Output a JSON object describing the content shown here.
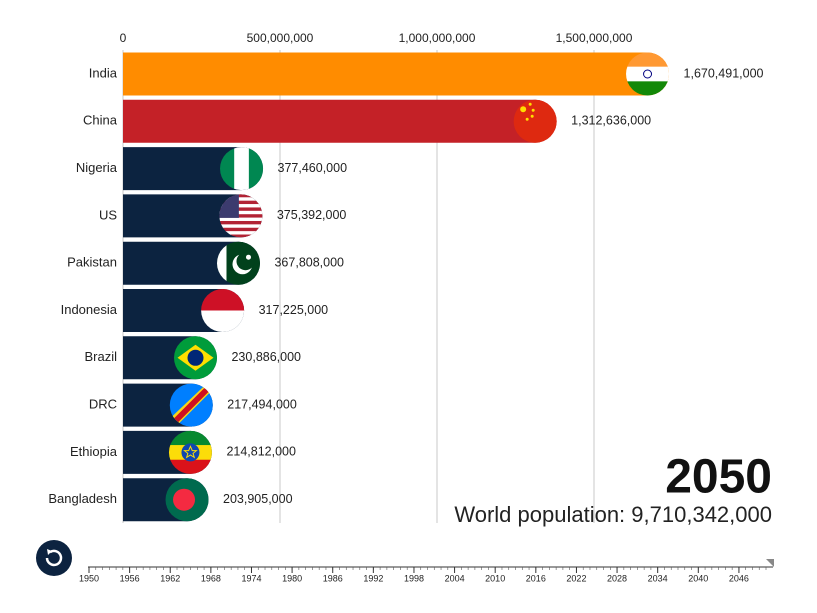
{
  "chart_data": {
    "type": "bar",
    "orientation": "horizontal",
    "categories": [
      "India",
      "China",
      "Nigeria",
      "US",
      "Pakistan",
      "Indonesia",
      "Brazil",
      "DRC",
      "Ethiopia",
      "Bangladesh"
    ],
    "values": [
      1670491000,
      1312636000,
      377460000,
      375392000,
      367808000,
      317225000,
      230886000,
      217494000,
      214812000,
      203905000
    ],
    "value_labels": [
      "1,670,491,000",
      "1,312,636,000",
      "377,460,000",
      "375,392,000",
      "367,808,000",
      "317,225,000",
      "230,886,000",
      "217,494,000",
      "214,812,000",
      "203,905,000"
    ],
    "colors": [
      "#ff8c00",
      "#c42127",
      "#0c2340",
      "#0c2340",
      "#0c2340",
      "#0c2340",
      "#0c2340",
      "#0c2340",
      "#0c2340",
      "#0c2340"
    ],
    "xlim": [
      0,
      2000000000
    ],
    "xticks": [
      0,
      {
        "value": 500000000,
        "label": "500,000,000"
      },
      {
        "value": 1000000000,
        "label": "1,000,000,000"
      },
      {
        "value": 1500000000,
        "label": "1,500,000,000"
      }
    ],
    "grid": true,
    "year": 2050,
    "total_label": "World population:",
    "total": 9710342000,
    "total_value_label": "9,710,342,000",
    "timeline": {
      "xlim": [
        1950,
        2050
      ],
      "xticks": [
        1950,
        1956,
        1962,
        1968,
        1974,
        1980,
        1986,
        1992,
        1998,
        2004,
        2010,
        2016,
        2022,
        2028,
        2034,
        2040,
        2046
      ]
    }
  }
}
